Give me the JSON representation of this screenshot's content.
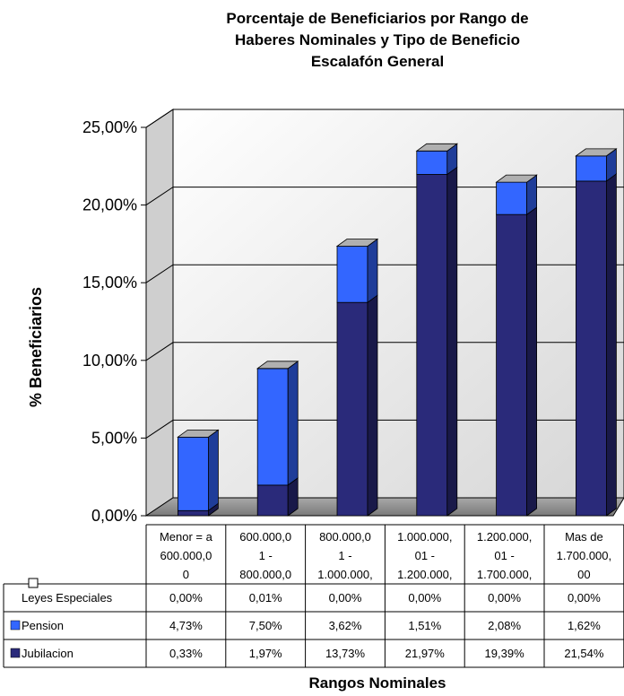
{
  "chart_data": {
    "type": "bar",
    "stacked": true,
    "title_lines": [
      "Porcentaje de Beneficiarios por Rango de",
      "Haberes Nominales y Tipo de Beneficio",
      "Escalafón General"
    ],
    "ylabel": "% Beneficiarios",
    "xlabel": "Rangos Nominales",
    "ylim": [
      0,
      25
    ],
    "y_ticks": [
      0,
      5,
      10,
      15,
      20,
      25
    ],
    "y_tick_labels": [
      "0,00%",
      "5,00%",
      "10,00%",
      "15,00%",
      "20,00%",
      "25,00%"
    ],
    "categories": [
      [
        "Menor = a",
        "600.000,0",
        "0"
      ],
      [
        "600.000,0",
        "1 -",
        "800.000,0"
      ],
      [
        "800.000,0",
        "1 -",
        "1.000.000,"
      ],
      [
        "1.000.000,",
        "01 -",
        "1.200.000,"
      ],
      [
        "1.200.000,",
        "01 -",
        "1.700.000,"
      ],
      [
        "Mas de",
        "1.700.000,",
        "00"
      ]
    ],
    "series": [
      {
        "name": "Leyes Especiales",
        "color": "#ffffff",
        "values": [
          0.0,
          0.01,
          0.0,
          0.0,
          0.0,
          0.0
        ],
        "labels": [
          "0,00%",
          "0,01%",
          "0,00%",
          "0,00%",
          "0,00%",
          "0,00%"
        ]
      },
      {
        "name": "Pension",
        "color": "#3366ff",
        "values": [
          4.73,
          7.5,
          3.62,
          1.51,
          2.08,
          1.62
        ],
        "labels": [
          "4,73%",
          "7,50%",
          "3,62%",
          "1,51%",
          "2,08%",
          "1,62%"
        ]
      },
      {
        "name": "Jubilacion",
        "color": "#2a2a7a",
        "values": [
          0.33,
          1.97,
          13.73,
          21.97,
          19.39,
          21.54
        ],
        "labels": [
          "0,33%",
          "1,97%",
          "13,73%",
          "21,97%",
          "19,39%",
          "21,54%"
        ]
      }
    ],
    "stack_order": [
      "Jubilacion",
      "Pension",
      "Leyes Especiales"
    ],
    "grid": true,
    "legend": "data-table"
  }
}
